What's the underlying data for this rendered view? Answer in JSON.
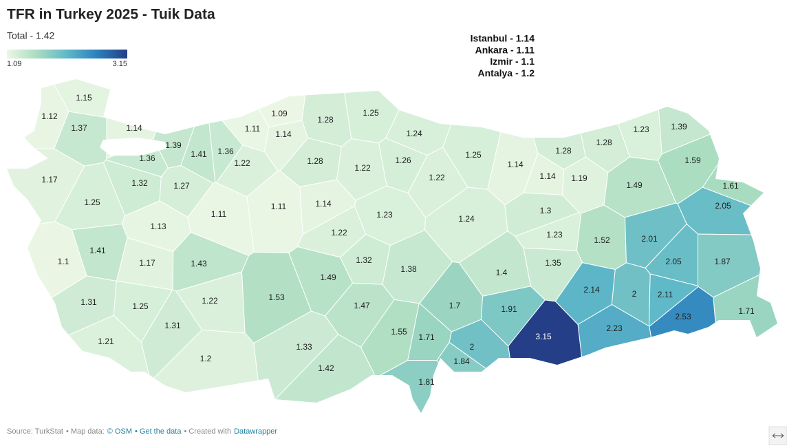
{
  "chart_data": {
    "type": "choropleth",
    "title": "TFR in Turkey 2025 - Tuik Data",
    "subtitle": "Total - 1.42",
    "legend": {
      "min": 1.09,
      "max": 3.15,
      "colors": [
        "#ebf7e4",
        "#a9dcc0",
        "#5fb8c8",
        "#2a80bd",
        "#243f88"
      ]
    },
    "annotations": [
      "Istanbul - 1.14",
      "Ankara - 1.11",
      "Izmir - 1.1",
      "Antalya - 1.2"
    ],
    "values": [
      1.15,
      1.12,
      1.37,
      1.14,
      1.09,
      1.28,
      1.25,
      1.11,
      1.14,
      1.24,
      1.23,
      1.39,
      1.39,
      1.41,
      1.36,
      1.36,
      1.22,
      1.28,
      1.22,
      1.26,
      1.25,
      1.14,
      1.28,
      1.28,
      1.59,
      1.17,
      1.32,
      1.27,
      1.22,
      1.14,
      1.19,
      1.49,
      1.61,
      1.25,
      1.11,
      1.14,
      1.11,
      2.05,
      1.13,
      1.23,
      1.24,
      1.3,
      1.22,
      1.23,
      1.52,
      2.01,
      1.41,
      1.1,
      1.17,
      1.43,
      1.32,
      1.38,
      1.35,
      2.05,
      1.87,
      1.49,
      1.4,
      2.14,
      2,
      2.11,
      1.53,
      1.31,
      1.22,
      1.25,
      1.47,
      1.7,
      1.91,
      1.71,
      2.53,
      1.31,
      2.23,
      1.55,
      1.71,
      3.15,
      1.21,
      2,
      1.33,
      1.84,
      1.2,
      1.42,
      1.81
    ],
    "footer": [
      "Source: TurkStat",
      "• Map data:",
      "© OSM",
      "• Get the data",
      "• Created with",
      "Datawrapper"
    ]
  }
}
